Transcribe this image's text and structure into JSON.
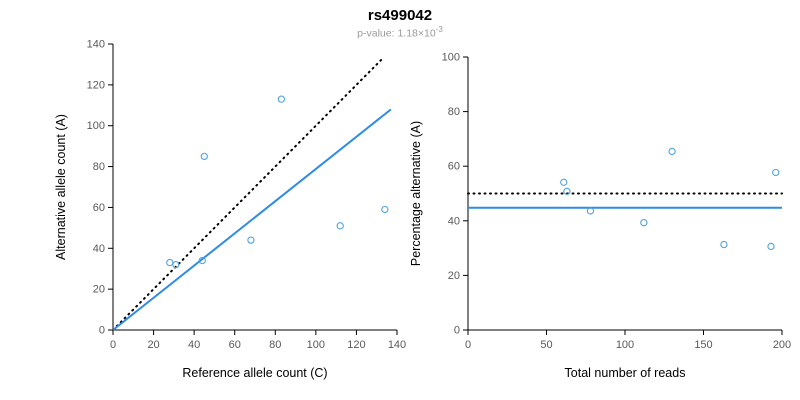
{
  "title": "rs499042",
  "subtitle": {
    "prefix": "p-value: 1.18×10",
    "exponent": "-3"
  },
  "colors": {
    "axis": "#000000",
    "tick_label": "#595959",
    "axis_label": "#000000",
    "point": "#4da3e0",
    "fit_line": "#2e8be6",
    "reference_line": "#000000"
  },
  "chart_data": [
    {
      "type": "scatter",
      "xlabel": "Reference allele count (C)",
      "ylabel": "Alternative allele count (A)",
      "xlim": [
        0,
        140
      ],
      "ylim": [
        0,
        140
      ],
      "xticks": [
        0,
        20,
        40,
        60,
        80,
        100,
        120,
        140
      ],
      "yticks": [
        0,
        20,
        40,
        60,
        80,
        100,
        120,
        140
      ],
      "grid": false,
      "points": [
        [
          28,
          33
        ],
        [
          31,
          32
        ],
        [
          44,
          34
        ],
        [
          45,
          85
        ],
        [
          68,
          44
        ],
        [
          83,
          113
        ],
        [
          112,
          51
        ],
        [
          134,
          59
        ]
      ],
      "lines": [
        {
          "name": "identity-dotted-line",
          "style": "dotted",
          "color": "#000000",
          "from": [
            0,
            0
          ],
          "to": [
            133,
            133
          ]
        },
        {
          "name": "fit-line",
          "style": "solid",
          "color": "#2e8be6",
          "from": [
            0,
            0
          ],
          "to": [
            137,
            108
          ]
        }
      ]
    },
    {
      "type": "scatter",
      "xlabel": "Total number of reads",
      "ylabel": "Percentage alternative (A)",
      "xlim": [
        0,
        200
      ],
      "ylim": [
        0,
        100
      ],
      "xticks": [
        0,
        50,
        100,
        150,
        200
      ],
      "yticks": [
        0,
        20,
        40,
        60,
        80,
        100
      ],
      "grid": false,
      "points": [
        [
          61,
          54.1
        ],
        [
          63,
          50.8
        ],
        [
          78,
          43.6
        ],
        [
          112,
          39.3
        ],
        [
          130,
          65.4
        ],
        [
          163,
          31.3
        ],
        [
          193,
          30.6
        ],
        [
          196,
          57.7
        ]
      ],
      "lines": [
        {
          "name": "expected-dotted-line",
          "style": "dotted",
          "color": "#000000",
          "from": [
            0,
            50
          ],
          "to": [
            200,
            50
          ]
        },
        {
          "name": "mean-percentage-line",
          "style": "solid",
          "color": "#2e8be6",
          "from": [
            0,
            44.8
          ],
          "to": [
            200,
            44.8
          ]
        }
      ]
    }
  ]
}
